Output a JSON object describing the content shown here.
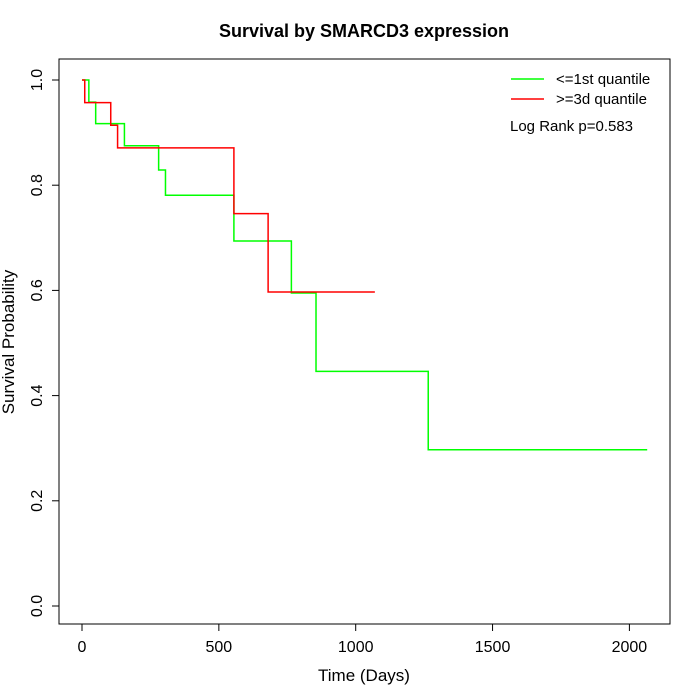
{
  "chart_data": {
    "type": "line",
    "step": true,
    "title": "Survival by SMARCD3 expression",
    "xlabel": "Time (Days)",
    "ylabel": "Survival Probability",
    "xlim": [
      0,
      2070
    ],
    "ylim": [
      0,
      1.0
    ],
    "x_ticks": [
      0,
      500,
      1000,
      1500,
      2000
    ],
    "y_ticks": [
      0.0,
      0.2,
      0.4,
      0.6,
      0.8,
      1.0
    ],
    "x_tick_labels": [
      "0",
      "500",
      "1000",
      "1500",
      "2000"
    ],
    "y_tick_labels": [
      "0.0",
      "0.2",
      "0.4",
      "0.6",
      "0.8",
      "1.0"
    ],
    "grid": false,
    "legend_position": "top-right",
    "annotation": "Log Rank p=0.583",
    "series": [
      {
        "name": "<=1st quantile",
        "color": "#00ff00",
        "x": [
          0,
          25,
          50,
          155,
          280,
          305,
          555,
          765,
          855,
          1265,
          2065
        ],
        "y": [
          1.0,
          0.958,
          0.917,
          0.875,
          0.829,
          0.781,
          0.694,
          0.595,
          0.446,
          0.297,
          0.297
        ]
      },
      {
        "name": ">=3d quantile",
        "color": "#ff0000",
        "x": [
          0,
          10,
          105,
          130,
          555,
          680,
          1070
        ],
        "y": [
          1.0,
          0.957,
          0.914,
          0.871,
          0.746,
          0.597,
          0.597
        ]
      }
    ]
  }
}
